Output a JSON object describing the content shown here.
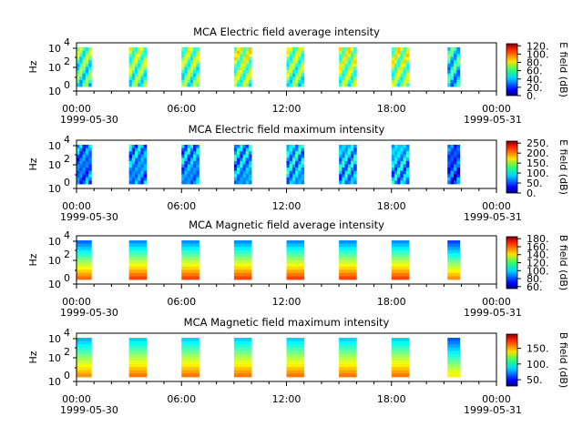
{
  "chart_data": [
    {
      "type": "heatmap",
      "title": "MCA  Electric field average intensity",
      "ylabel": "Hz",
      "colorbar_label": "E field (dB)",
      "colorbar_ticks": [
        "0.",
        "20.",
        "40.",
        "60.",
        "80.",
        "100.",
        "120."
      ],
      "colorbar_range": [
        0,
        125
      ],
      "y_ticks": [
        "10",
        "10",
        "10"
      ],
      "y_tick_exps": [
        "0",
        "2",
        "4"
      ],
      "x_ticks": [
        "00:00",
        "06:00",
        "12:00",
        "18:00",
        "00:00"
      ],
      "date_labels": [
        "1999-05-30",
        "1999-05-31"
      ],
      "x_range_hours": [
        0,
        24
      ],
      "passes": [
        {
          "start_hour": 0.0,
          "end_hour": 0.85,
          "level": 55
        },
        {
          "start_hour": 3.0,
          "end_hour": 4.0,
          "level": 60
        },
        {
          "start_hour": 6.0,
          "end_hour": 7.0,
          "level": 60
        },
        {
          "start_hour": 9.0,
          "end_hour": 10.0,
          "level": 65
        },
        {
          "start_hour": 12.0,
          "end_hour": 13.0,
          "level": 60
        },
        {
          "start_hour": 15.0,
          "end_hour": 16.0,
          "level": 65
        },
        {
          "start_hour": 18.0,
          "end_hour": 19.0,
          "level": 65
        },
        {
          "start_hour": 21.2,
          "end_hour": 21.9,
          "level": 45
        }
      ]
    },
    {
      "type": "heatmap",
      "title": "MCA  Electric field maximum intensity",
      "ylabel": "Hz",
      "colorbar_label": "E field (dB)",
      "colorbar_ticks": [
        "0.",
        "50.",
        "100.",
        "150.",
        "200.",
        "250."
      ],
      "colorbar_range": [
        0,
        260
      ],
      "y_ticks": [
        "10",
        "10",
        "10"
      ],
      "y_tick_exps": [
        "0",
        "2",
        "4"
      ],
      "x_ticks": [
        "00:00",
        "06:00",
        "12:00",
        "18:00",
        "00:00"
      ],
      "date_labels": [
        "1999-05-30",
        "1999-05-31"
      ],
      "x_range_hours": [
        0,
        24
      ],
      "passes": [
        {
          "start_hour": 0.0,
          "end_hour": 0.85,
          "level": 70
        },
        {
          "start_hour": 3.0,
          "end_hour": 4.0,
          "level": 80
        },
        {
          "start_hour": 6.0,
          "end_hour": 7.0,
          "level": 80
        },
        {
          "start_hour": 9.0,
          "end_hour": 10.0,
          "level": 85
        },
        {
          "start_hour": 12.0,
          "end_hour": 13.0,
          "level": 90
        },
        {
          "start_hour": 15.0,
          "end_hour": 16.0,
          "level": 90
        },
        {
          "start_hour": 18.0,
          "end_hour": 19.0,
          "level": 90
        },
        {
          "start_hour": 21.2,
          "end_hour": 21.9,
          "level": 60
        }
      ]
    },
    {
      "type": "heatmap",
      "title": "MCA  Magnetic field average intensity",
      "ylabel": "Hz",
      "colorbar_label": "B field (dB)",
      "colorbar_ticks": [
        "60.",
        "80.",
        "100.",
        "120.",
        "140.",
        "160.",
        "180."
      ],
      "colorbar_range": [
        55,
        185
      ],
      "y_ticks": [
        "10",
        "10",
        "10"
      ],
      "y_tick_exps": [
        "0",
        "2",
        "4"
      ],
      "x_ticks": [
        "00:00",
        "06:00",
        "12:00",
        "18:00",
        "00:00"
      ],
      "date_labels": [
        "1999-05-30",
        "1999-05-31"
      ],
      "x_range_hours": [
        0,
        24
      ],
      "passes": [
        {
          "start_hour": 0.0,
          "end_hour": 0.85,
          "level": 120
        },
        {
          "start_hour": 3.0,
          "end_hour": 4.0,
          "level": 125
        },
        {
          "start_hour": 6.0,
          "end_hour": 7.0,
          "level": 125
        },
        {
          "start_hour": 9.0,
          "end_hour": 10.0,
          "level": 125
        },
        {
          "start_hour": 12.0,
          "end_hour": 13.0,
          "level": 125
        },
        {
          "start_hour": 15.0,
          "end_hour": 16.0,
          "level": 125
        },
        {
          "start_hour": 18.0,
          "end_hour": 19.0,
          "level": 125
        },
        {
          "start_hour": 21.2,
          "end_hour": 21.9,
          "level": 115
        }
      ]
    },
    {
      "type": "heatmap",
      "title": "MCA  Magnetic field maximum intensity",
      "ylabel": "Hz",
      "colorbar_label": "B field (dB)",
      "colorbar_ticks": [
        "50.",
        "100.",
        "150."
      ],
      "colorbar_range": [
        30,
        195
      ],
      "y_ticks": [
        "10",
        "10",
        "10"
      ],
      "y_tick_exps": [
        "0",
        "2",
        "4"
      ],
      "x_ticks": [
        "00:00",
        "06:00",
        "12:00",
        "18:00",
        "00:00"
      ],
      "date_labels": [
        "1999-05-30",
        "1999-05-31"
      ],
      "x_range_hours": [
        0,
        24
      ],
      "passes": [
        {
          "start_hour": 0.0,
          "end_hour": 0.85,
          "level": 115
        },
        {
          "start_hour": 3.0,
          "end_hour": 4.0,
          "level": 120
        },
        {
          "start_hour": 6.0,
          "end_hour": 7.0,
          "level": 120
        },
        {
          "start_hour": 9.0,
          "end_hour": 10.0,
          "level": 120
        },
        {
          "start_hour": 12.0,
          "end_hour": 13.0,
          "level": 120
        },
        {
          "start_hour": 15.0,
          "end_hour": 16.0,
          "level": 120
        },
        {
          "start_hour": 18.0,
          "end_hour": 19.0,
          "level": 120
        },
        {
          "start_hour": 21.2,
          "end_hour": 21.9,
          "level": 100
        }
      ]
    }
  ]
}
